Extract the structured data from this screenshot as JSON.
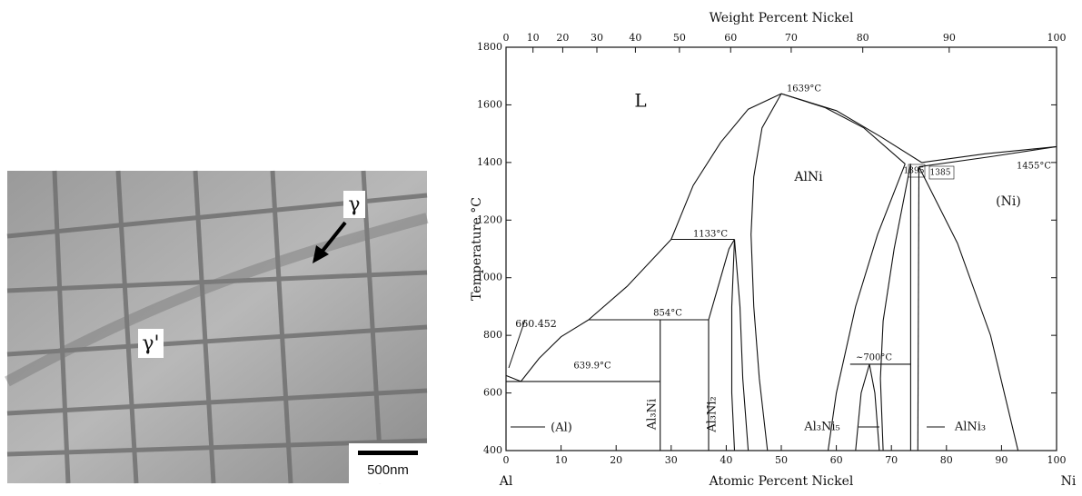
{
  "micrograph": {
    "labels": [
      "γ",
      "γ'"
    ],
    "scale_bar": "500nm"
  },
  "chart_data": {
    "type": "phase-diagram",
    "top_axis_title": "Weight Percent Nickel",
    "x_axis_title": "Atomic Percent Nickel",
    "y_axis_title": "Temperature °C",
    "x_end_labels": [
      "Al",
      "Ni"
    ],
    "xlim": [
      0,
      100
    ],
    "ylim": [
      400,
      1800
    ],
    "xticks": [
      0,
      10,
      20,
      30,
      40,
      50,
      60,
      70,
      80,
      90,
      100
    ],
    "yticks": [
      400,
      600,
      800,
      1000,
      1200,
      1400,
      1600,
      1800
    ],
    "top_ticks": [
      {
        "value": 0,
        "label": "0"
      },
      {
        "value": 4.9,
        "label": "10"
      },
      {
        "value": 10.3,
        "label": "20"
      },
      {
        "value": 16.5,
        "label": "30"
      },
      {
        "value": 23.5,
        "label": "40"
      },
      {
        "value": 31.5,
        "label": "50"
      },
      {
        "value": 40.8,
        "label": "60"
      },
      {
        "value": 51.8,
        "label": "70"
      },
      {
        "value": 64.8,
        "label": "80"
      },
      {
        "value": 80.5,
        "label": "90"
      },
      {
        "value": 100,
        "label": "100"
      }
    ],
    "color": "#111111",
    "lines": [
      {
        "x": [
          0,
          2.7
        ],
        "y": [
          660.452,
          639.9
        ]
      },
      {
        "x": [
          2.7,
          6,
          10,
          15
        ],
        "y": [
          639.9,
          720,
          795,
          854
        ]
      },
      {
        "x": [
          15,
          22,
          30
        ],
        "y": [
          854,
          970,
          1133
        ]
      },
      {
        "x": [
          30,
          34,
          39,
          44,
          50
        ],
        "y": [
          1133,
          1320,
          1470,
          1585,
          1639
        ]
      },
      {
        "x": [
          50,
          60,
          68,
          75.5
        ],
        "y": [
          1639,
          1580,
          1490,
          1400
        ]
      },
      {
        "x": [
          50,
          58,
          65,
          72.5
        ],
        "y": [
          1639,
          1590,
          1520,
          1395
        ]
      },
      {
        "x": [
          75.5,
          87,
          100
        ],
        "y": [
          1400,
          1430,
          1455
        ]
      },
      {
        "x": [
          75,
          88,
          100
        ],
        "y": [
          1385,
          1420,
          1455
        ]
      },
      {
        "x": [
          50,
          46.5,
          45,
          44.5,
          45,
          46,
          47.5
        ],
        "y": [
          1639,
          1520,
          1350,
          1150,
          900,
          650,
          400
        ]
      },
      {
        "x": [
          0,
          28
        ],
        "y": [
          639.9,
          639.9
        ]
      },
      {
        "x": [
          15,
          36.8
        ],
        "y": [
          854,
          854
        ]
      },
      {
        "x": [
          30,
          41.5
        ],
        "y": [
          1133,
          1133
        ]
      },
      {
        "x": [
          28,
          28
        ],
        "y": [
          854,
          400
        ]
      },
      {
        "x": [
          36.8,
          36.8
        ],
        "y": [
          854,
          400
        ]
      },
      {
        "x": [
          36.8,
          39,
          40.5,
          41.5
        ],
        "y": [
          854,
          1000,
          1100,
          1133
        ]
      },
      {
        "x": [
          41.5,
          41,
          41,
          41.5
        ],
        "y": [
          1133,
          900,
          600,
          400
        ]
      },
      {
        "x": [
          41.5,
          42.5,
          43,
          44
        ],
        "y": [
          1133,
          900,
          650,
          400
        ]
      },
      {
        "x": [
          72.5,
          67.5,
          63.5,
          60,
          58.5
        ],
        "y": [
          1395,
          1150,
          900,
          600,
          400
        ]
      },
      {
        "x": [
          73.5,
          70.5,
          68.5,
          68,
          68.5
        ],
        "y": [
          1395,
          1100,
          850,
          650,
          400
        ]
      },
      {
        "x": [
          62.5,
          73.5
        ],
        "y": [
          700,
          700
        ]
      },
      {
        "x": [
          63.5,
          64.5,
          66,
          67,
          67.8
        ],
        "y": [
          400,
          600,
          700,
          600,
          400
        ]
      },
      {
        "x": [
          73.5,
          73.5
        ],
        "y": [
          1395,
          400
        ]
      },
      {
        "x": [
          75,
          74.8
        ],
        "y": [
          1385,
          400
        ]
      },
      {
        "x": [
          75,
          82,
          88,
          93
        ],
        "y": [
          1385,
          1120,
          800,
          400
        ]
      }
    ],
    "annotations": [
      "L",
      "1639°C",
      "AlNi",
      "1455°C",
      "1395",
      "1385",
      "(Ni)",
      "1133°C",
      "660.452",
      "854°C",
      "639.9°C",
      "~700°C",
      "(Al)",
      "Al₃Ni",
      "Al₃Ni₂",
      "Al₃Ni₅",
      "AlNi₃"
    ]
  }
}
